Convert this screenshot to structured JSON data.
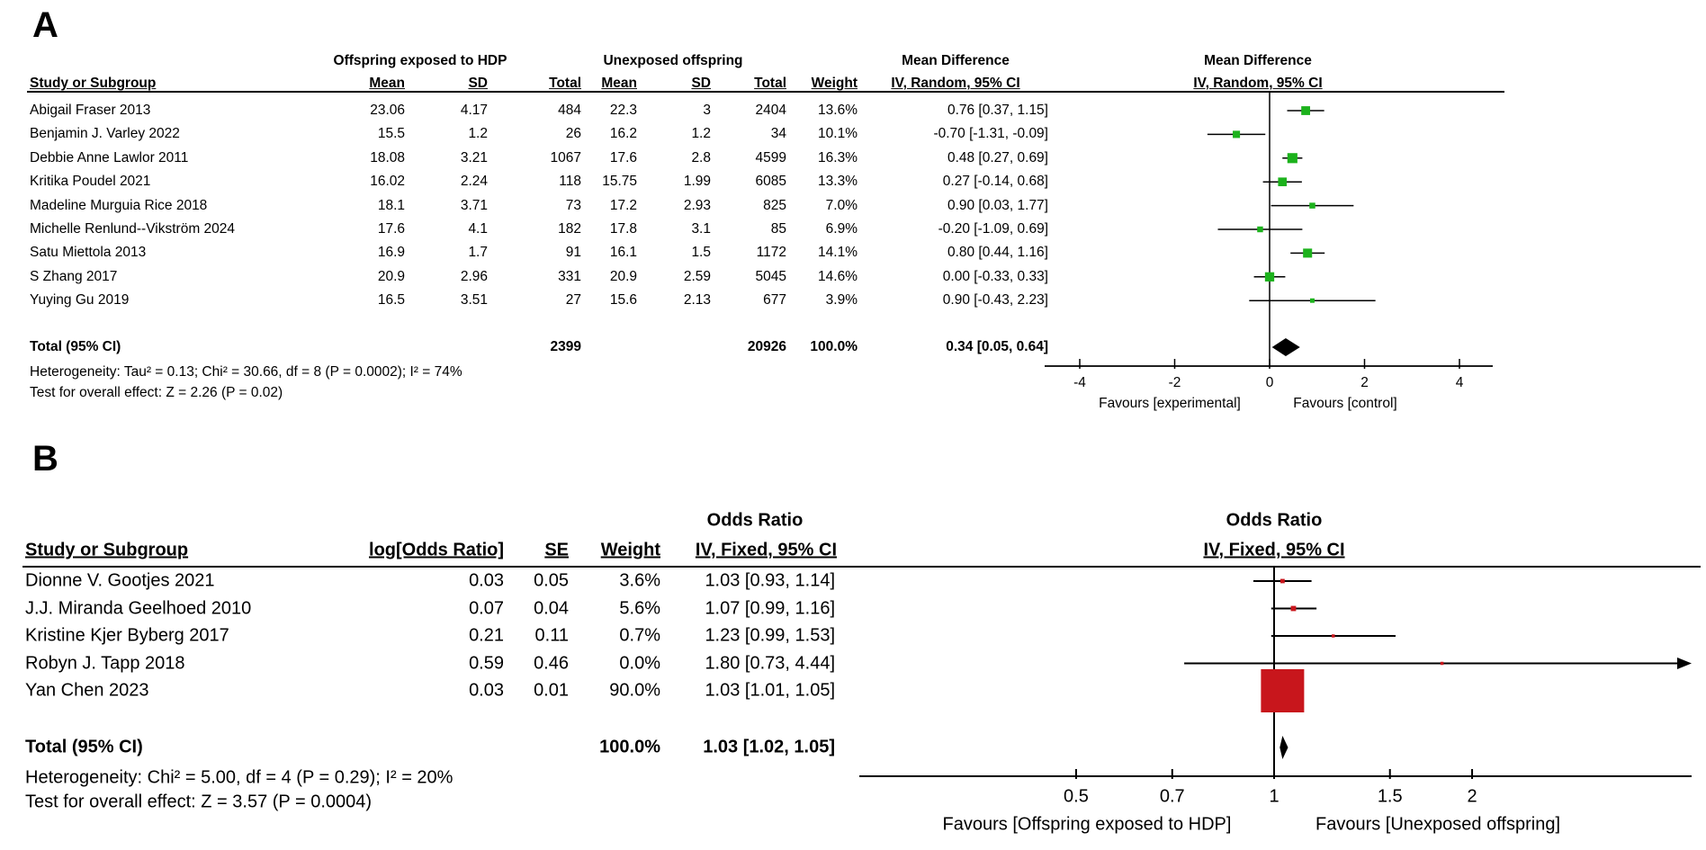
{
  "colors": {
    "panel_a_marker": "#1cb21c",
    "panel_b_marker": "#c8161c",
    "diamond": "#000000",
    "line": "#000000"
  },
  "chart_data": [
    {
      "type": "forest",
      "panel_label": "A",
      "effect_title": "Mean Difference",
      "method_line": "IV, Random, 95% CI",
      "group1_header": "Offspring exposed to HDP",
      "group2_header": "Unexposed offspring",
      "col_headers": {
        "study": "Study or Subgroup",
        "mean": "Mean",
        "sd": "SD",
        "total": "Total",
        "weight": "Weight",
        "ci": "IV, Random, 95% CI"
      },
      "studies": [
        {
          "name": "Abigail Fraser 2013",
          "mean1": "23.06",
          "sd1": "4.17",
          "total1": "484",
          "mean2": "22.3",
          "sd2": "3",
          "total2": "2404",
          "weight": "13.6%",
          "ci": "0.76 [0.37, 1.15]",
          "est": 0.76,
          "lo": 0.37,
          "hi": 1.15,
          "w": 13.6
        },
        {
          "name": "Benjamin J. Varley 2022",
          "mean1": "15.5",
          "sd1": "1.2",
          "total1": "26",
          "mean2": "16.2",
          "sd2": "1.2",
          "total2": "34",
          "weight": "10.1%",
          "ci": "-0.70 [-1.31, -0.09]",
          "est": -0.7,
          "lo": -1.31,
          "hi": -0.09,
          "w": 10.1
        },
        {
          "name": "Debbie Anne Lawlor 2011",
          "mean1": "18.08",
          "sd1": "3.21",
          "total1": "1067",
          "mean2": "17.6",
          "sd2": "2.8",
          "total2": "4599",
          "weight": "16.3%",
          "ci": "0.48 [0.27, 0.69]",
          "est": 0.48,
          "lo": 0.27,
          "hi": 0.69,
          "w": 16.3
        },
        {
          "name": "Kritika Poudel 2021",
          "mean1": "16.02",
          "sd1": "2.24",
          "total1": "118",
          "mean2": "15.75",
          "sd2": "1.99",
          "total2": "6085",
          "weight": "13.3%",
          "ci": "0.27 [-0.14, 0.68]",
          "est": 0.27,
          "lo": -0.14,
          "hi": 0.68,
          "w": 13.3
        },
        {
          "name": "Madeline Murguia Rice 2018",
          "mean1": "18.1",
          "sd1": "3.71",
          "total1": "73",
          "mean2": "17.2",
          "sd2": "2.93",
          "total2": "825",
          "weight": "7.0%",
          "ci": "0.90 [0.03, 1.77]",
          "est": 0.9,
          "lo": 0.03,
          "hi": 1.77,
          "w": 7.0
        },
        {
          "name": "Michelle Renlund--Vikström 2024",
          "mean1": "17.6",
          "sd1": "4.1",
          "total1": "182",
          "mean2": "17.8",
          "sd2": "3.1",
          "total2": "85",
          "weight": "6.9%",
          "ci": "-0.20 [-1.09, 0.69]",
          "est": -0.2,
          "lo": -1.09,
          "hi": 0.69,
          "w": 6.9
        },
        {
          "name": "Satu Miettola 2013",
          "mean1": "16.9",
          "sd1": "1.7",
          "total1": "91",
          "mean2": "16.1",
          "sd2": "1.5",
          "total2": "1172",
          "weight": "14.1%",
          "ci": "0.80 [0.44, 1.16]",
          "est": 0.8,
          "lo": 0.44,
          "hi": 1.16,
          "w": 14.1
        },
        {
          "name": "S Zhang 2017",
          "mean1": "20.9",
          "sd1": "2.96",
          "total1": "331",
          "mean2": "20.9",
          "sd2": "2.59",
          "total2": "5045",
          "weight": "14.6%",
          "ci": "0.00 [-0.33, 0.33]",
          "est": 0.0,
          "lo": -0.33,
          "hi": 0.33,
          "w": 14.6
        },
        {
          "name": "Yuying Gu 2019",
          "mean1": "16.5",
          "sd1": "3.51",
          "total1": "27",
          "mean2": "15.6",
          "sd2": "2.13",
          "total2": "677",
          "weight": "3.9%",
          "ci": "0.90 [-0.43, 2.23]",
          "est": 0.9,
          "lo": -0.43,
          "hi": 2.23,
          "w": 3.9
        }
      ],
      "total": {
        "label": "Total (95% CI)",
        "total1": "2399",
        "total2": "20926",
        "weight": "100.0%",
        "ci": "0.34 [0.05, 0.64]",
        "est": 0.34,
        "lo": 0.05,
        "hi": 0.64
      },
      "heterogeneity": "Heterogeneity: Tau² = 0.13; Chi² = 30.66, df = 8 (P = 0.0002); I² = 74%",
      "overall_effect": "Test for overall effect: Z = 2.26 (P = 0.02)",
      "axis": {
        "scale": "linear",
        "ticks": [
          "-4",
          "-2",
          "0",
          "2",
          "4"
        ],
        "tick_values": [
          -4,
          -2,
          0,
          2,
          4
        ],
        "xlim": [
          -4.74,
          4.7
        ]
      },
      "favours_left": "Favours [experimental]",
      "favours_right": "Favours [control]"
    },
    {
      "type": "forest",
      "panel_label": "B",
      "effect_title": "Odds Ratio",
      "method_line": "IV, Fixed, 95% CI",
      "col_headers": {
        "study": "Study or Subgroup",
        "logor": "log[Odds Ratio]",
        "se": "SE",
        "weight": "Weight",
        "ci": "IV, Fixed, 95% CI"
      },
      "studies": [
        {
          "name": "Dionne V. Gootjes 2021",
          "logor": "0.03",
          "se": "0.05",
          "weight": "3.6%",
          "ci": "1.03 [0.93, 1.14]",
          "est": 1.03,
          "lo": 0.93,
          "hi": 1.14,
          "w": 3.6
        },
        {
          "name": "J.J. Miranda Geelhoed 2010",
          "logor": "0.07",
          "se": "0.04",
          "weight": "5.6%",
          "ci": "1.07 [0.99, 1.16]",
          "est": 1.07,
          "lo": 0.99,
          "hi": 1.16,
          "w": 5.6
        },
        {
          "name": "Kristine Kjer Byberg 2017",
          "logor": "0.21",
          "se": "0.11",
          "weight": "0.7%",
          "ci": "1.23 [0.99, 1.53]",
          "est": 1.23,
          "lo": 0.99,
          "hi": 1.53,
          "w": 0.7
        },
        {
          "name": "Robyn J. Tapp 2018",
          "logor": "0.59",
          "se": "0.46",
          "weight": "0.0%",
          "ci": "1.80 [0.73, 4.44]",
          "est": 1.8,
          "lo": 0.73,
          "hi": 4.44,
          "w": 0.0
        },
        {
          "name": "Yan Chen 2023",
          "logor": "0.03",
          "se": "0.01",
          "weight": "90.0%",
          "ci": "1.03 [1.01, 1.05]",
          "est": 1.03,
          "lo": 1.01,
          "hi": 1.05,
          "w": 90.0
        }
      ],
      "total": {
        "label": "Total (95% CI)",
        "weight": "100.0%",
        "ci": "1.03 [1.02, 1.05]",
        "est": 1.03,
        "lo": 1.02,
        "hi": 1.05
      },
      "heterogeneity": "Heterogeneity: Chi² = 5.00, df = 4 (P = 0.29); I² = 20%",
      "overall_effect": "Test for overall effect: Z = 3.57 (P = 0.0004)",
      "axis": {
        "scale": "log",
        "ticks": [
          "0.5",
          "0.7",
          "1",
          "1.5",
          "2"
        ],
        "tick_values": [
          0.5,
          0.7,
          1,
          1.5,
          2
        ],
        "xlim": [
          0.234,
          4.31
        ]
      },
      "favours_left": "Favours [Offspring exposed to HDP]",
      "favours_right": "Favours [Unexposed offspring]"
    }
  ]
}
